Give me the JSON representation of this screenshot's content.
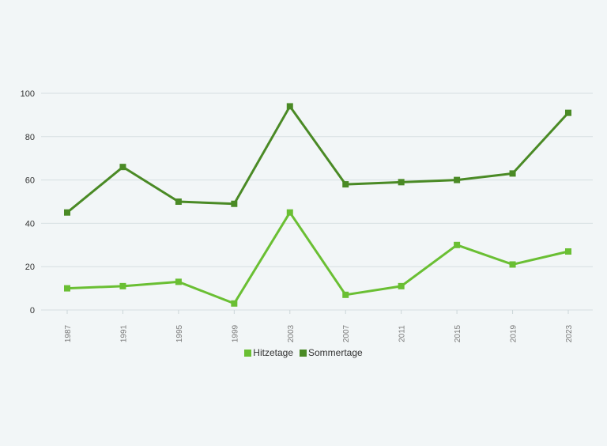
{
  "chart_data": {
    "type": "line",
    "title": "",
    "xlabel": "",
    "ylabel": "",
    "categories": [
      "1987",
      "1991",
      "1995",
      "1999",
      "2003",
      "2007",
      "2011",
      "2015",
      "2019",
      "2023"
    ],
    "ylim": [
      0,
      100
    ],
    "yticks": [
      "0",
      "20",
      "40",
      "60",
      "80",
      "100"
    ],
    "grid": true,
    "legend_position": "bottom",
    "series": [
      {
        "name": "Hitzetage",
        "color": "#6abf33",
        "values": [
          10,
          11,
          13,
          3,
          45,
          7,
          11,
          30,
          21,
          27
        ]
      },
      {
        "name": "Sommertage",
        "color": "#4a8a25",
        "values": [
          45,
          66,
          50,
          49,
          94,
          58,
          59,
          60,
          63,
          91
        ]
      }
    ]
  }
}
